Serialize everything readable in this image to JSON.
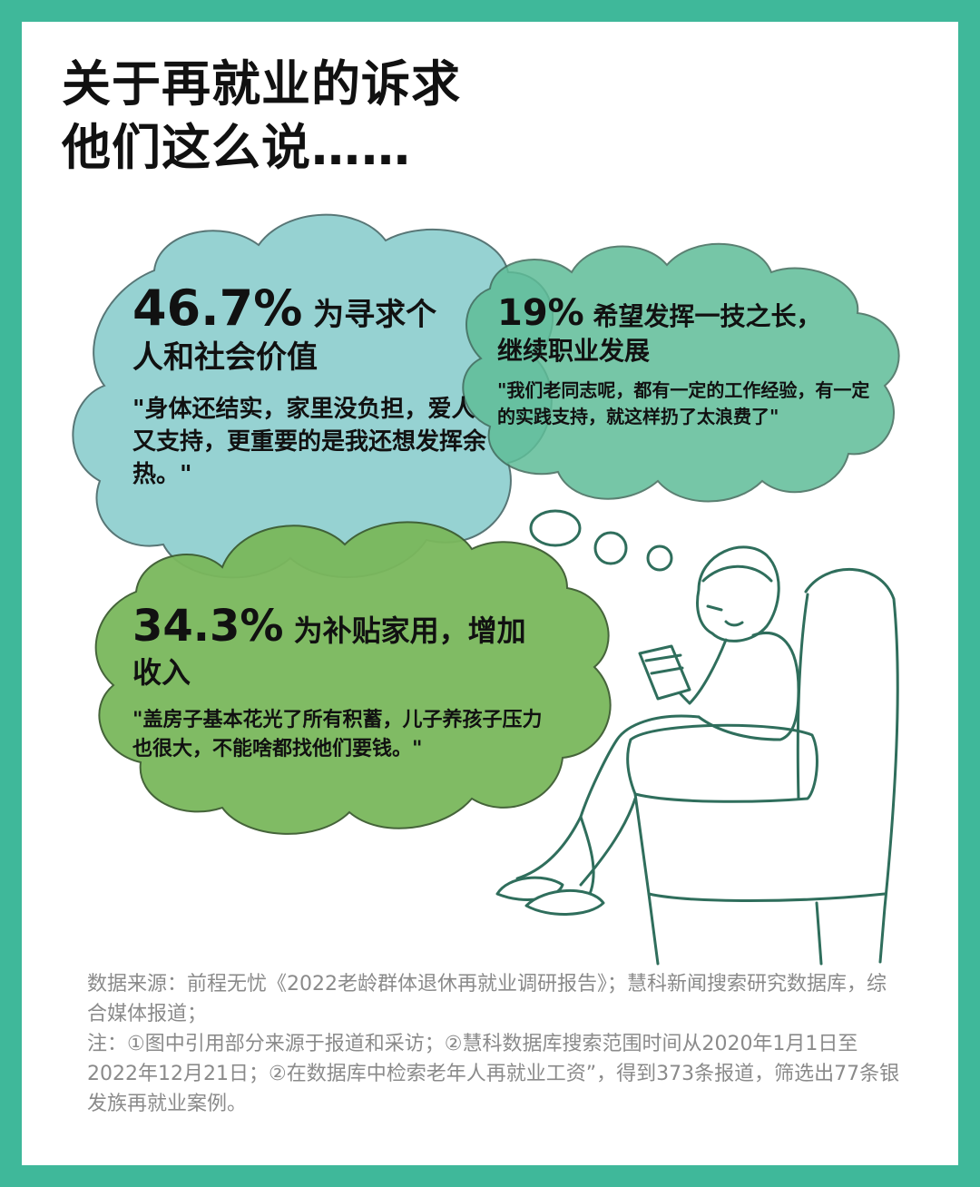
{
  "title": {
    "line1": "关于再就业的诉求",
    "line2": "他们这么说……"
  },
  "bubbles": [
    {
      "percent": "46.7%",
      "claim_line1": " 为寻求个",
      "claim_line2": "人和社会价值",
      "quote": "\"身体还结实，家里没负担，爱人又支持，更重要的是我还想发挥余热。\"",
      "color": "#8ecfcf"
    },
    {
      "percent": "19%",
      "claim_line1": " 希望发挥一技之长，",
      "claim_line2": "继续职业发展",
      "quote": "\"我们老同志呢，都有一定的工作经验，有一定的实践支持，就这样扔了太浪费了\"",
      "color": "#5fbd98"
    },
    {
      "percent": "34.3%",
      "claim_line1": " 为补贴家用，增加",
      "claim_line2": "收入",
      "quote": "\"盖房子基本花光了所有积蓄，儿子养孩子压力也很大，不能啥都找他们要钱。\"",
      "color": "#7ab85c"
    }
  ],
  "source": {
    "line1": "数据来源：前程无忧《2022老龄群体退休再就业调研报告》；慧科新闻搜索研究数据库，综合媒体报道；",
    "line2": "注：①图中引用部分来源于报道和采访；②慧科数据库搜索范围时间从2020年1月1日至2022年12月21日；②在数据库中检索老年人再就业工资”，得到373条报道，筛选出77条银发族再就业案例。"
  },
  "colors": {
    "frame": "#3fb89a",
    "sketch": "#2f6e5c",
    "source_text": "#8a8a8a"
  },
  "illustration": "elderly-man-reading-in-armchair"
}
